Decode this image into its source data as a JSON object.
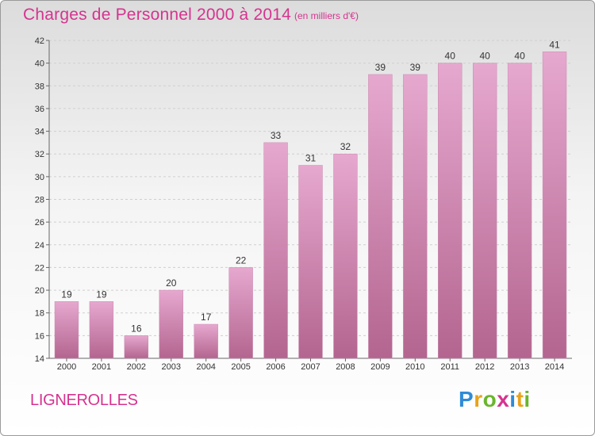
{
  "header": {
    "title": "Charges de Personnel 2000 à 2014",
    "subtitle": "(en milliers d'€)"
  },
  "footer": {
    "town": "LIGNEROLLES",
    "brand": "Proxiti",
    "brand_letters": [
      {
        "ch": "P",
        "color": "#2f8bd6"
      },
      {
        "ch": "r",
        "color": "#e8a31a"
      },
      {
        "ch": "o",
        "color": "#6ab52d"
      },
      {
        "ch": "x",
        "color": "#d6338f"
      },
      {
        "ch": "i",
        "color": "#2f8bd6"
      },
      {
        "ch": "t",
        "color": "#e8a31a"
      },
      {
        "ch": "i",
        "color": "#6ab52d"
      }
    ]
  },
  "colors": {
    "accent": "#d6338f",
    "bar_top": "#e6a8cf",
    "bar_bottom": "#b3658f"
  },
  "chart_data": {
    "type": "bar",
    "title": "Charges de Personnel 2000 à 2014",
    "subtitle": "(en milliers d'€)",
    "categories": [
      "2000",
      "2001",
      "2002",
      "2003",
      "2004",
      "2005",
      "2006",
      "2007",
      "2008",
      "2009",
      "2010",
      "2011",
      "2012",
      "2013",
      "2014"
    ],
    "values": [
      19,
      19,
      16,
      20,
      17,
      22,
      33,
      31,
      32,
      39,
      39,
      40,
      40,
      40,
      41
    ],
    "ylim": [
      14,
      42
    ],
    "yticks": [
      14,
      16,
      18,
      20,
      22,
      24,
      26,
      28,
      30,
      32,
      34,
      36,
      38,
      40,
      42
    ],
    "grid": "horizontal",
    "xlabel": "",
    "ylabel": ""
  }
}
